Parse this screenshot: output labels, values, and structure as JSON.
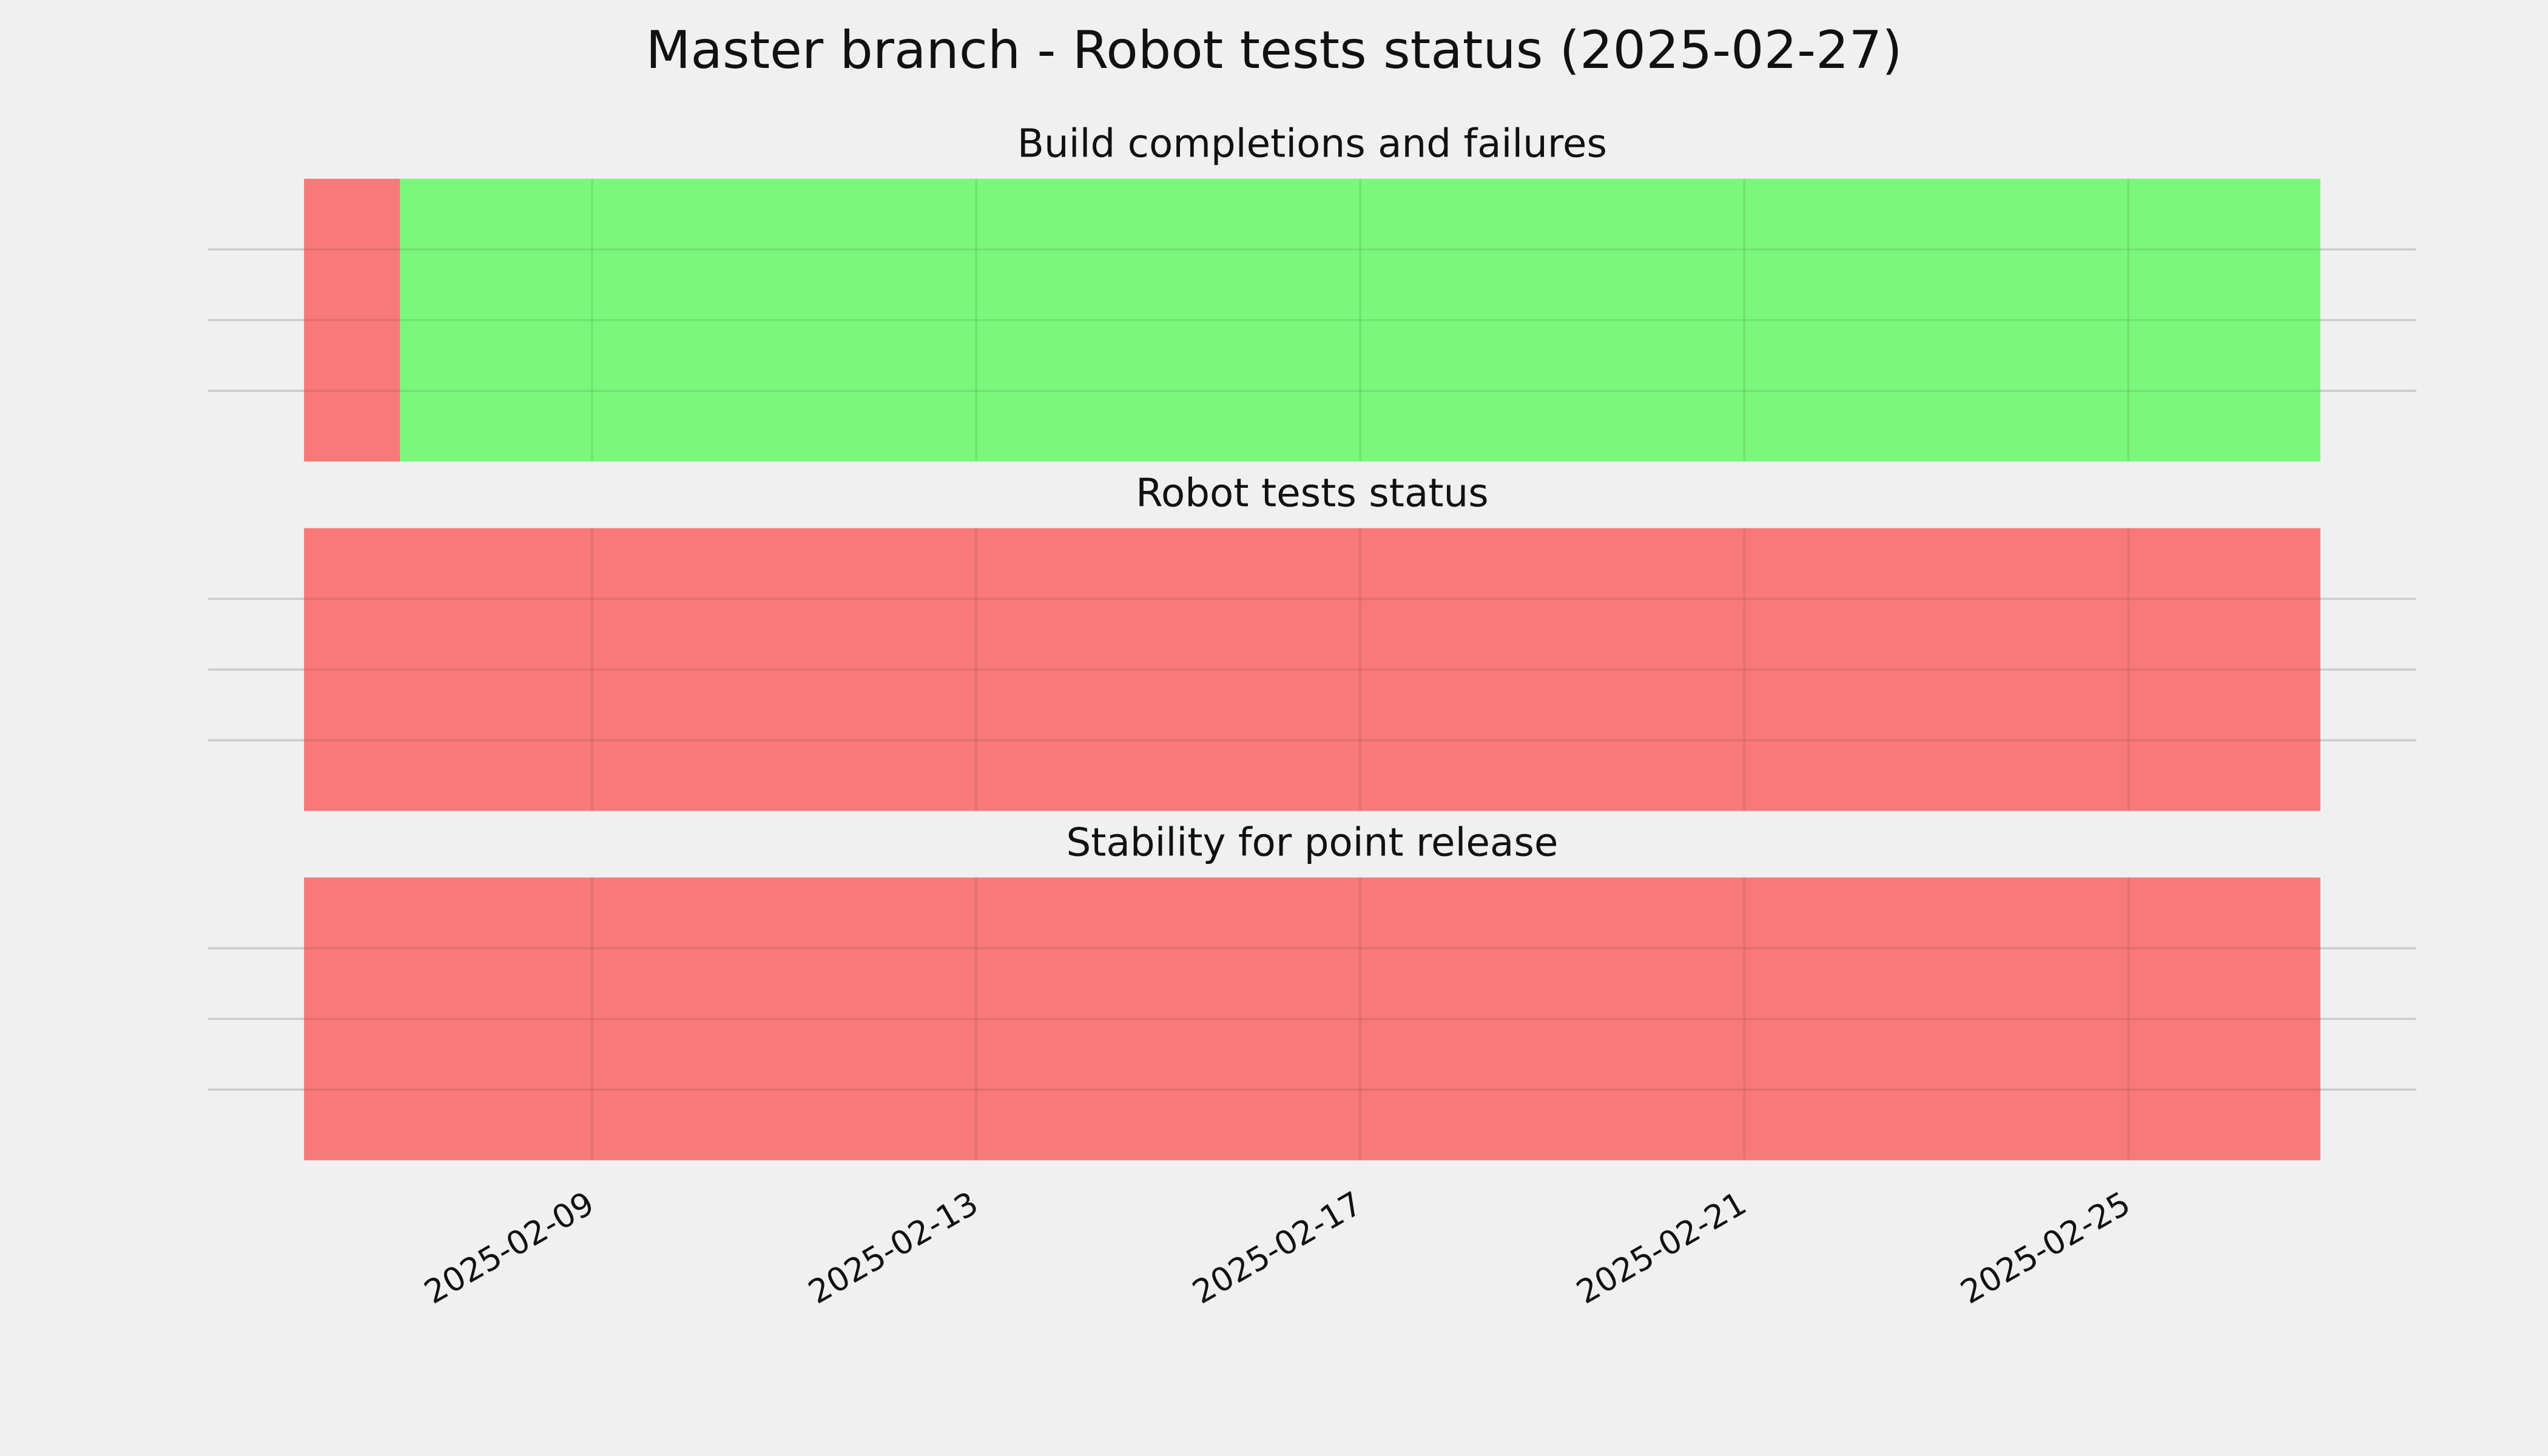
{
  "title": "Master branch - Robot tests status (2025-02-27)",
  "chart_data": [
    {
      "type": "span",
      "title": "Build completions and failures",
      "spans": [
        {
          "start": "2025-02-06",
          "end": "2025-02-07",
          "color": "#f77575"
        },
        {
          "start": "2025-02-07",
          "end": "2025-02-27",
          "color": "#77f777"
        }
      ],
      "xlim": [
        "2025-02-05",
        "2025-02-28"
      ],
      "xticks": [
        "2025-02-09",
        "2025-02-13",
        "2025-02-17",
        "2025-02-21",
        "2025-02-25"
      ],
      "ylim": [
        0,
        1
      ],
      "yticks": [
        0.25,
        0.5,
        0.75
      ],
      "grid": true,
      "show_xtick_labels": false
    },
    {
      "type": "span",
      "title": "Robot tests status",
      "spans": [
        {
          "start": "2025-02-06",
          "end": "2025-02-27",
          "color": "#f77575"
        }
      ],
      "xlim": [
        "2025-02-05",
        "2025-02-28"
      ],
      "xticks": [
        "2025-02-09",
        "2025-02-13",
        "2025-02-17",
        "2025-02-21",
        "2025-02-25"
      ],
      "ylim": [
        0,
        1
      ],
      "yticks": [
        0.25,
        0.5,
        0.75
      ],
      "grid": true,
      "show_xtick_labels": false
    },
    {
      "type": "span",
      "title": "Stability for point release",
      "spans": [
        {
          "start": "2025-02-06",
          "end": "2025-02-27",
          "color": "#f77575"
        }
      ],
      "xlim": [
        "2025-02-05",
        "2025-02-28"
      ],
      "xticks": [
        "2025-02-09",
        "2025-02-13",
        "2025-02-17",
        "2025-02-21",
        "2025-02-25"
      ],
      "ylim": [
        0,
        1
      ],
      "yticks": [
        0.25,
        0.5,
        0.75
      ],
      "grid": true,
      "show_xtick_labels": true
    }
  ]
}
